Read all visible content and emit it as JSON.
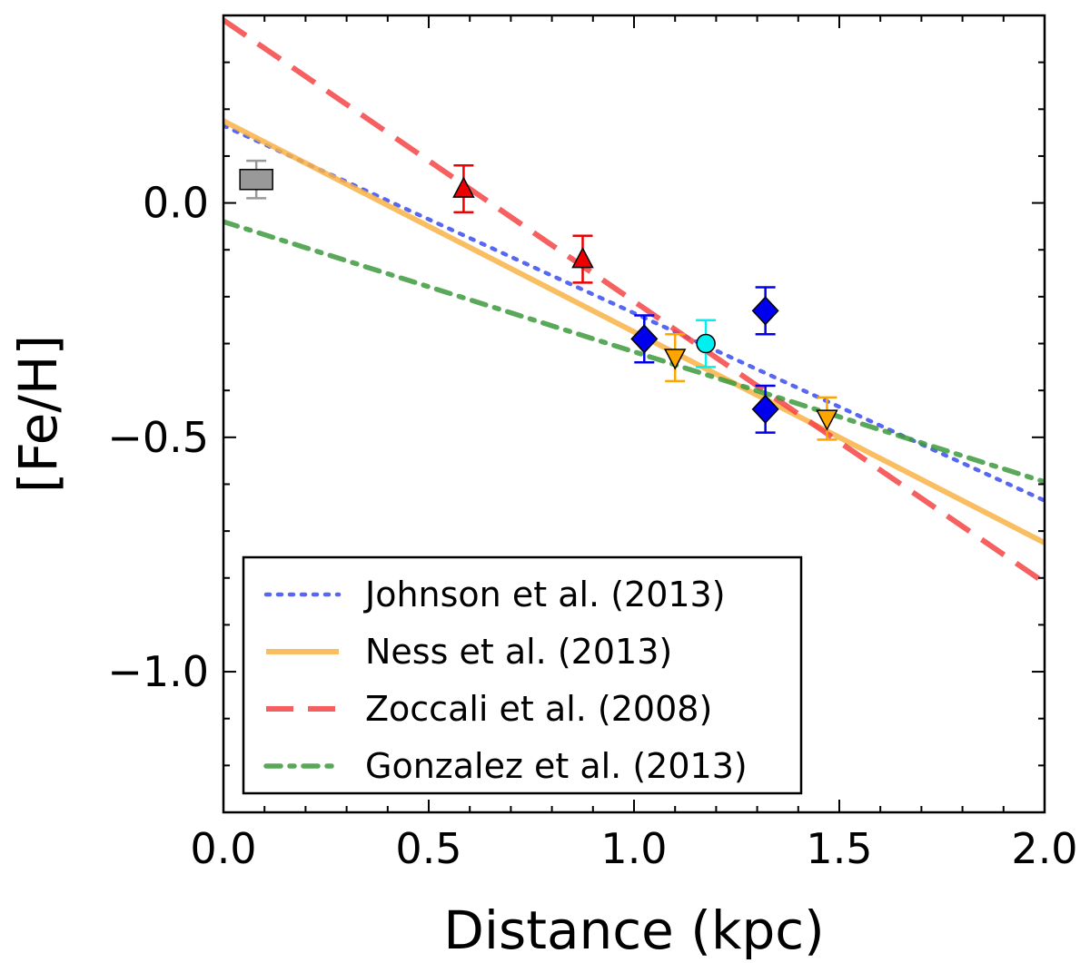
{
  "chart_data": {
    "type": "scatter",
    "title": "",
    "xlabel": "Distance (kpc)",
    "ylabel": "[Fe/H]",
    "xlim": [
      0.0,
      2.0
    ],
    "ylim": [
      -1.3,
      0.4
    ],
    "grid": false,
    "legend_position": "lower-left",
    "x_ticks": [
      {
        "value": 0.0,
        "label": "0.0"
      },
      {
        "value": 0.5,
        "label": "0.5"
      },
      {
        "value": 1.0,
        "label": "1.0"
      },
      {
        "value": 1.5,
        "label": "1.5"
      },
      {
        "value": 2.0,
        "label": "2.0"
      }
    ],
    "y_ticks": [
      {
        "value": 0.0,
        "label": "0.0"
      },
      {
        "value": -0.5,
        "label": "−0.5"
      },
      {
        "value": -1.0,
        "label": "−1.0"
      }
    ],
    "x_minor_step": 0.1,
    "y_minor_step": 0.1,
    "lines": [
      {
        "name": "Johnson et al. (2013)",
        "style": "dotted",
        "color": "#3b4cf0",
        "x": [
          0.0,
          2.0
        ],
        "y": [
          0.165,
          -0.635
        ]
      },
      {
        "name": "Ness et al. (2013)",
        "style": "solid",
        "color": "#f9b347",
        "x": [
          0.0,
          2.0
        ],
        "y": [
          0.175,
          -0.725
        ]
      },
      {
        "name": "Zoccali et al. (2008)",
        "style": "dashed",
        "color": "#f44444",
        "x": [
          0.0,
          2.0
        ],
        "y": [
          0.39,
          -0.81
        ]
      },
      {
        "name": "Gonzalez et al. (2013)",
        "style": "dashdot",
        "color": "#3d9a3d",
        "x": [
          0.0,
          2.0
        ],
        "y": [
          -0.04,
          -0.595
        ]
      }
    ],
    "points": [
      {
        "group": "gray-square",
        "marker": "square",
        "color": "#999999",
        "x": 0.08,
        "y": 0.05,
        "yerr": 0.04
      },
      {
        "group": "red-triangle",
        "marker": "triangle-up",
        "color": "#ee0000",
        "x": 0.585,
        "y": 0.03,
        "yerr": 0.05
      },
      {
        "group": "red-triangle",
        "marker": "triangle-up",
        "color": "#ee0000",
        "x": 0.875,
        "y": -0.12,
        "yerr": 0.05
      },
      {
        "group": "blue-diamond",
        "marker": "diamond",
        "color": "#0000ee",
        "x": 1.025,
        "y": -0.29,
        "yerr": 0.05
      },
      {
        "group": "blue-diamond",
        "marker": "diamond",
        "color": "#0000ee",
        "x": 1.32,
        "y": -0.23,
        "yerr": 0.05
      },
      {
        "group": "blue-diamond",
        "marker": "diamond",
        "color": "#0000ee",
        "x": 1.32,
        "y": -0.44,
        "yerr": 0.05
      },
      {
        "group": "orange-triangle",
        "marker": "triangle-down",
        "color": "#ffa500",
        "x": 1.1,
        "y": -0.33,
        "yerr": 0.05
      },
      {
        "group": "orange-triangle",
        "marker": "triangle-down",
        "color": "#ffa500",
        "x": 1.47,
        "y": -0.46,
        "yerr": 0.045
      },
      {
        "group": "cyan-circle",
        "marker": "circle",
        "color": "#00f0f0",
        "x": 1.175,
        "y": -0.3,
        "yerr": 0.05
      }
    ]
  }
}
